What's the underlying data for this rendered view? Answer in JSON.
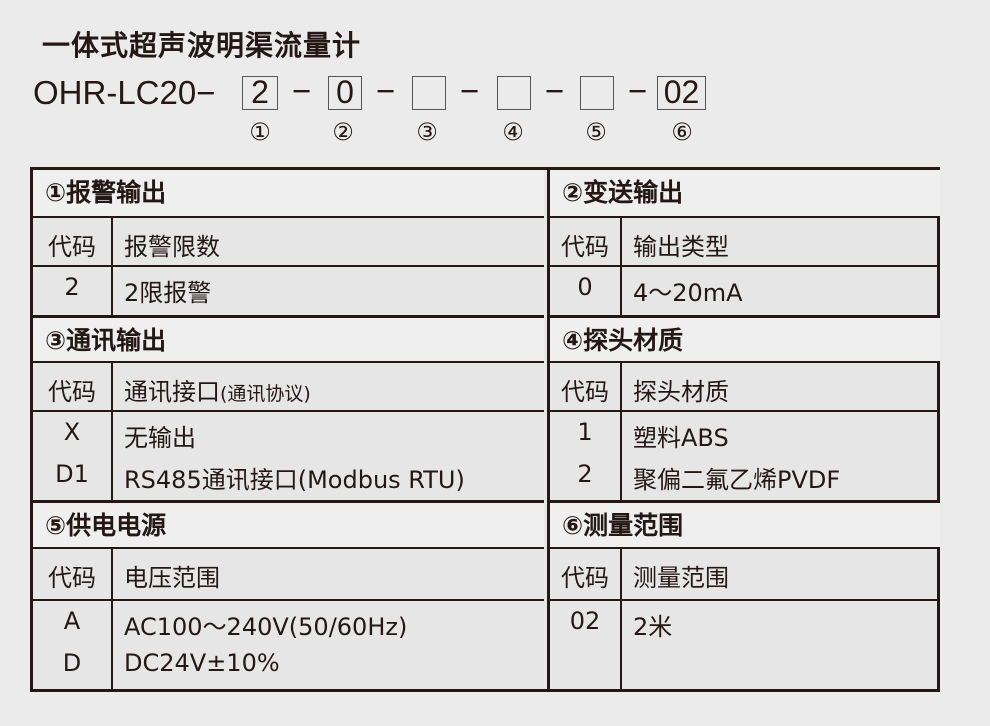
{
  "title": "一体式超声波明渠流量计",
  "model": {
    "prefix": "OHR-LC20−",
    "dash": "−",
    "boxes": [
      "2",
      "0",
      "",
      "",
      "",
      "02"
    ],
    "circles": [
      "①",
      "②",
      "③",
      "④",
      "⑤",
      "⑥"
    ]
  },
  "sections": [
    {
      "title": "①报警输出",
      "header": [
        "代码",
        "报警限数"
      ],
      "rows": [
        [
          "2",
          "2限报警"
        ]
      ]
    },
    {
      "title": "②变送输出",
      "header": [
        "代码",
        "输出类型"
      ],
      "rows": [
        [
          "0",
          "4～20mA"
        ]
      ]
    },
    {
      "title": "③通讯输出",
      "header": [
        "代码",
        "通讯接口"
      ],
      "header_note": "(通讯协议)",
      "rows": [
        [
          "X",
          "无输出"
        ],
        [
          "D1",
          "RS485通讯接口(Modbus RTU)"
        ]
      ]
    },
    {
      "title": "④探头材质",
      "header": [
        "代码",
        "探头材质"
      ],
      "rows": [
        [
          "1",
          "塑料ABS"
        ],
        [
          "2",
          "聚偏二氟乙烯PVDF"
        ]
      ]
    },
    {
      "title": "⑤供电电源",
      "header": [
        "代码",
        "电压范围"
      ],
      "rows": [
        [
          "A",
          "AC100～240V(50/60Hz)"
        ],
        [
          "D",
          "DC24V±10%"
        ]
      ]
    },
    {
      "title": "⑥测量范围",
      "header": [
        "代码",
        "测量范围"
      ],
      "rows": [
        [
          "02",
          "2米"
        ]
      ]
    }
  ]
}
